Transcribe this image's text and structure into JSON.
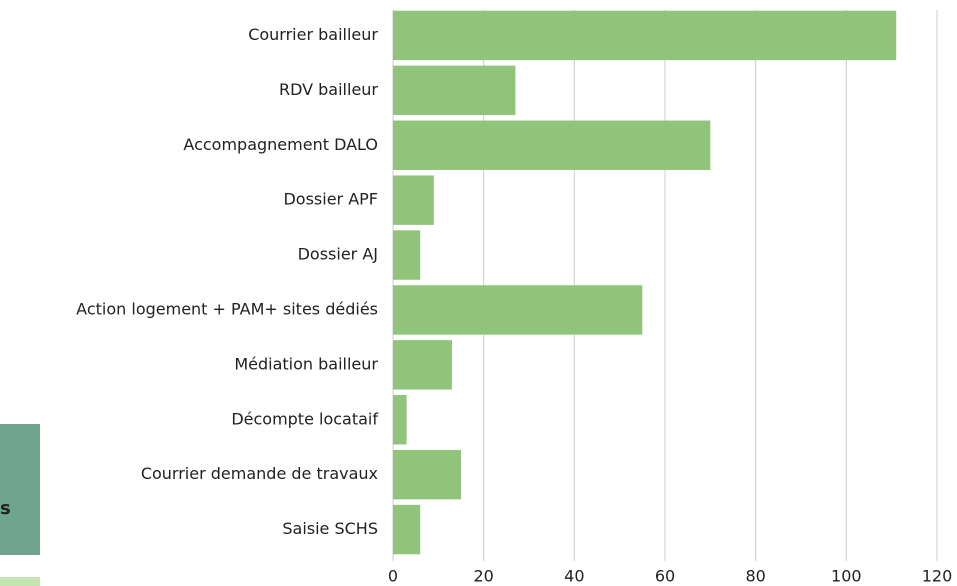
{
  "chart_data": {
    "type": "bar",
    "orientation": "horizontal",
    "categories": [
      "Courrier bailleur",
      "RDV bailleur",
      "Accompagnement DALO",
      "Dossier APF",
      "Dossier AJ",
      "Action logement + PAM+ sites dédiés",
      "Médiation bailleur",
      "Décompte locataif",
      "Courrier demande de travaux",
      "Saisie SCHS"
    ],
    "values": [
      111,
      27,
      70,
      9,
      6,
      55,
      13,
      3,
      15,
      6
    ],
    "color": "#8fc47a",
    "xlim": [
      0,
      120
    ],
    "xticks": [
      0,
      20,
      40,
      60,
      80,
      100,
      120
    ],
    "grid": true
  },
  "fragment": "s"
}
